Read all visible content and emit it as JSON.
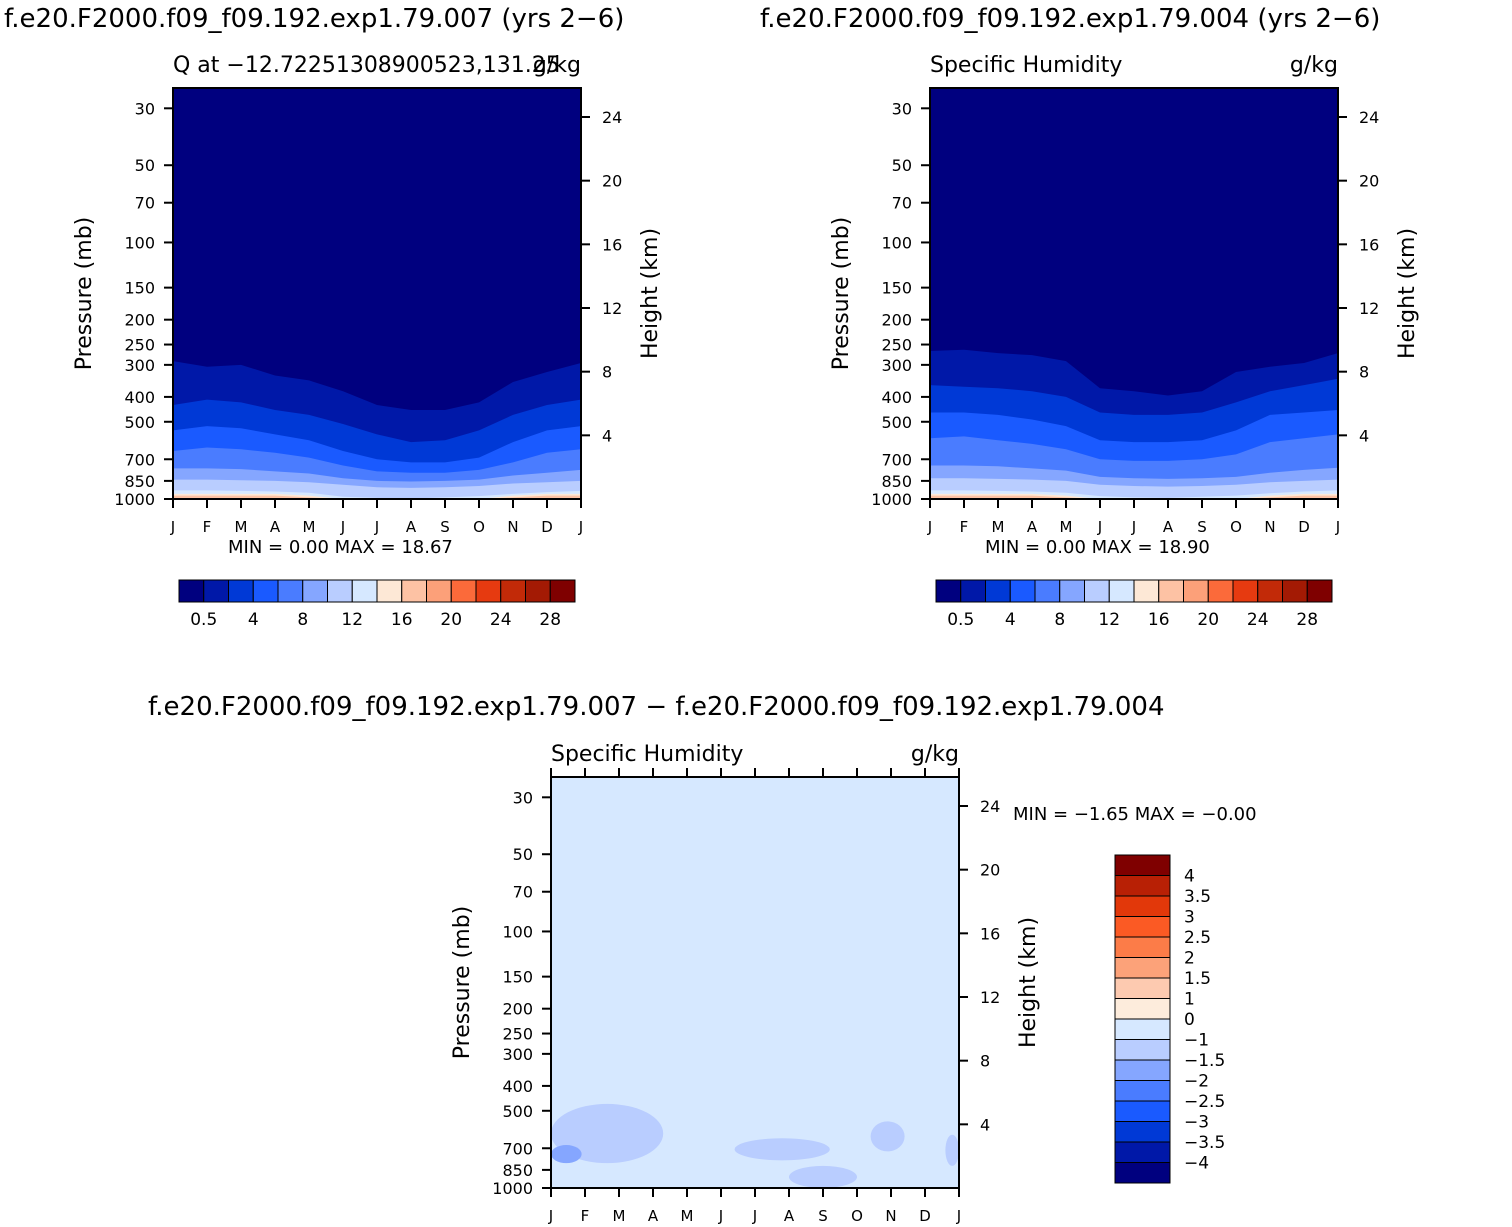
{
  "panels": [
    {
      "run_title": "f.e20.F2000.f09_f09.192.exp1.79.007 (yrs 2−6)",
      "left_title": "Q at −12.72251308900523,131.25",
      "right_title": "g/kg",
      "min_max_text": "MIN =    0.00  MAX =   18.67"
    },
    {
      "run_title": "f.e20.F2000.f09_f09.192.exp1.79.004 (yrs 2−6)",
      "left_title": "Specific Humidity",
      "right_title": "g/kg",
      "min_max_text": "MIN =    0.00  MAX =   18.90"
    },
    {
      "run_title": "f.e20.F2000.f09_f09.192.exp1.79.007 − f.e20.F2000.f09_f09.192.exp1.79.004",
      "left_title": "Specific Humidity",
      "right_title": "g/kg",
      "min_max_text": "MIN =   −1.65  MAX =   −0.00"
    }
  ],
  "chart_data": [
    {
      "type": "heatmap",
      "title": "Q at −12.72251308900523,131.25",
      "units": "g/kg",
      "xlabel": "",
      "ylabel": "Pressure (mb)",
      "y2label": "Height (km)",
      "x": [
        "J",
        "F",
        "M",
        "A",
        "M",
        "J",
        "J",
        "A",
        "S",
        "O",
        "N",
        "D",
        "J"
      ],
      "y_ticks_pressure": [
        30,
        50,
        70,
        100,
        150,
        200,
        250,
        300,
        400,
        500,
        700,
        850,
        1000
      ],
      "y2_ticks_km": [
        4,
        8,
        12,
        16,
        20,
        24
      ],
      "ylim_pressure": [
        1000,
        25
      ],
      "colorbar_labels": [
        "0.5",
        "4",
        "8",
        "12",
        "16",
        "20",
        "24",
        "28"
      ],
      "colorbar_colors": [
        "#00007f",
        "#0018a8",
        "#0039d6",
        "#1a5aff",
        "#4a7cff",
        "#85a6ff",
        "#b9cdff",
        "#d6e8ff",
        "#fde8d6",
        "#fdc2a4",
        "#fca079",
        "#fb6a3a",
        "#e63a10",
        "#c22a08",
        "#a31a04",
        "#7f0000"
      ],
      "min": 0.0,
      "max": 18.67,
      "contour_boundaries_mb": [
        [
          290,
          305,
          300,
          330,
          345,
          380,
          430,
          450,
          450,
          420,
          350,
          320,
          295
        ],
        [
          430,
          410,
          420,
          450,
          470,
          510,
          560,
          600,
          590,
          540,
          470,
          430,
          410
        ],
        [
          540,
          520,
          530,
          560,
          590,
          650,
          700,
          720,
          720,
          690,
          600,
          540,
          520
        ],
        [
          650,
          630,
          640,
          660,
          690,
          740,
          780,
          790,
          790,
          770,
          720,
          660,
          640
        ],
        [
          760,
          760,
          765,
          780,
          795,
          830,
          850,
          855,
          850,
          840,
          810,
          790,
          770
        ],
        [
          840,
          840,
          845,
          850,
          860,
          880,
          900,
          905,
          900,
          890,
          870,
          860,
          850
        ],
        [
          925,
          925,
          930,
          935,
          945,
          980,
          990,
          995,
          985,
          975,
          955,
          940,
          930
        ]
      ]
    },
    {
      "type": "heatmap",
      "title": "Specific Humidity",
      "units": "g/kg",
      "xlabel": "",
      "ylabel": "Pressure (mb)",
      "y2label": "Height (km)",
      "x": [
        "J",
        "F",
        "M",
        "A",
        "M",
        "J",
        "J",
        "A",
        "S",
        "O",
        "N",
        "D",
        "J"
      ],
      "y_ticks_pressure": [
        30,
        50,
        70,
        100,
        150,
        200,
        250,
        300,
        400,
        500,
        700,
        850,
        1000
      ],
      "y2_ticks_km": [
        4,
        8,
        12,
        16,
        20,
        24
      ],
      "ylim_pressure": [
        1000,
        25
      ],
      "colorbar_labels": [
        "0.5",
        "4",
        "8",
        "12",
        "16",
        "20",
        "24",
        "28"
      ],
      "colorbar_colors": [
        "#00007f",
        "#0018a8",
        "#0039d6",
        "#1a5aff",
        "#4a7cff",
        "#85a6ff",
        "#b9cdff",
        "#d6e8ff",
        "#fde8d6",
        "#fdc2a4",
        "#fca079",
        "#fb6a3a",
        "#e63a10",
        "#c22a08",
        "#a31a04",
        "#7f0000"
      ],
      "min": 0.0,
      "max": 18.9,
      "contour_boundaries_mb": [
        [
          265,
          262,
          270,
          275,
          290,
          370,
          380,
          395,
          380,
          320,
          305,
          295,
          270
        ],
        [
          360,
          365,
          370,
          380,
          400,
          460,
          470,
          470,
          460,
          420,
          380,
          360,
          340
        ],
        [
          460,
          460,
          470,
          490,
          520,
          590,
          600,
          600,
          590,
          540,
          470,
          460,
          450
        ],
        [
          580,
          570,
          590,
          610,
          640,
          700,
          710,
          710,
          700,
          670,
          600,
          580,
          560
        ],
        [
          740,
          740,
          745,
          760,
          775,
          820,
          830,
          835,
          830,
          820,
          790,
          770,
          755
        ],
        [
          830,
          830,
          835,
          840,
          850,
          880,
          890,
          895,
          890,
          880,
          860,
          850,
          840
        ],
        [
          925,
          925,
          930,
          935,
          945,
          975,
          985,
          990,
          980,
          970,
          950,
          935,
          925
        ]
      ]
    },
    {
      "type": "heatmap",
      "title": "Specific Humidity",
      "units": "g/kg",
      "xlabel": "",
      "ylabel": "Pressure (mb)",
      "y2label": "Height (km)",
      "x": [
        "J",
        "F",
        "M",
        "A",
        "M",
        "J",
        "J",
        "A",
        "S",
        "O",
        "N",
        "D",
        "J"
      ],
      "y_ticks_pressure": [
        30,
        50,
        70,
        100,
        150,
        200,
        250,
        300,
        400,
        500,
        700,
        850,
        1000
      ],
      "y2_ticks_km": [
        4,
        8,
        12,
        16,
        20,
        24
      ],
      "ylim_pressure": [
        1000,
        25
      ],
      "colorbar_labels": [
        "4",
        "3.5",
        "3",
        "2.5",
        "2",
        "1.5",
        "1",
        "0",
        "−1",
        "−1.5",
        "−2",
        "−2.5",
        "−3",
        "−3.5",
        "−4"
      ],
      "colorbar_colors": [
        "#7f0000",
        "#b82005",
        "#e2380a",
        "#fb5a24",
        "#fc7c48",
        "#fca279",
        "#fdcab0",
        "#fdecdc",
        "#d6e8ff",
        "#b9cdff",
        "#85a6ff",
        "#4a7cff",
        "#1a5aff",
        "#0039d6",
        "#0018a8",
        "#00007f"
      ],
      "min": -1.65,
      "max": -0.0,
      "background_value_range": [
        -1,
        0
      ],
      "anomaly_patches": [
        {
          "range": [
            -1.5,
            -1
          ],
          "x_month": [
            0,
            3.3
          ],
          "p_mb": [
            470,
            800
          ]
        },
        {
          "range": [
            -1.5,
            -1
          ],
          "x_month": [
            5.4,
            8.2
          ],
          "p_mb": [
            640,
            780
          ]
        },
        {
          "range": [
            -1.5,
            -1
          ],
          "x_month": [
            7.0,
            9.0
          ],
          "p_mb": [
            820,
            1000
          ]
        },
        {
          "range": [
            -1.5,
            -1
          ],
          "x_month": [
            9.4,
            10.4
          ],
          "p_mb": [
            550,
            720
          ]
        },
        {
          "range": [
            -1.5,
            -1
          ],
          "x_month": [
            11.6,
            12.0
          ],
          "p_mb": [
            620,
            820
          ]
        },
        {
          "range": [
            -2,
            -1.5
          ],
          "x_month": [
            0,
            0.9
          ],
          "p_mb": [
            680,
            800
          ]
        }
      ]
    }
  ]
}
